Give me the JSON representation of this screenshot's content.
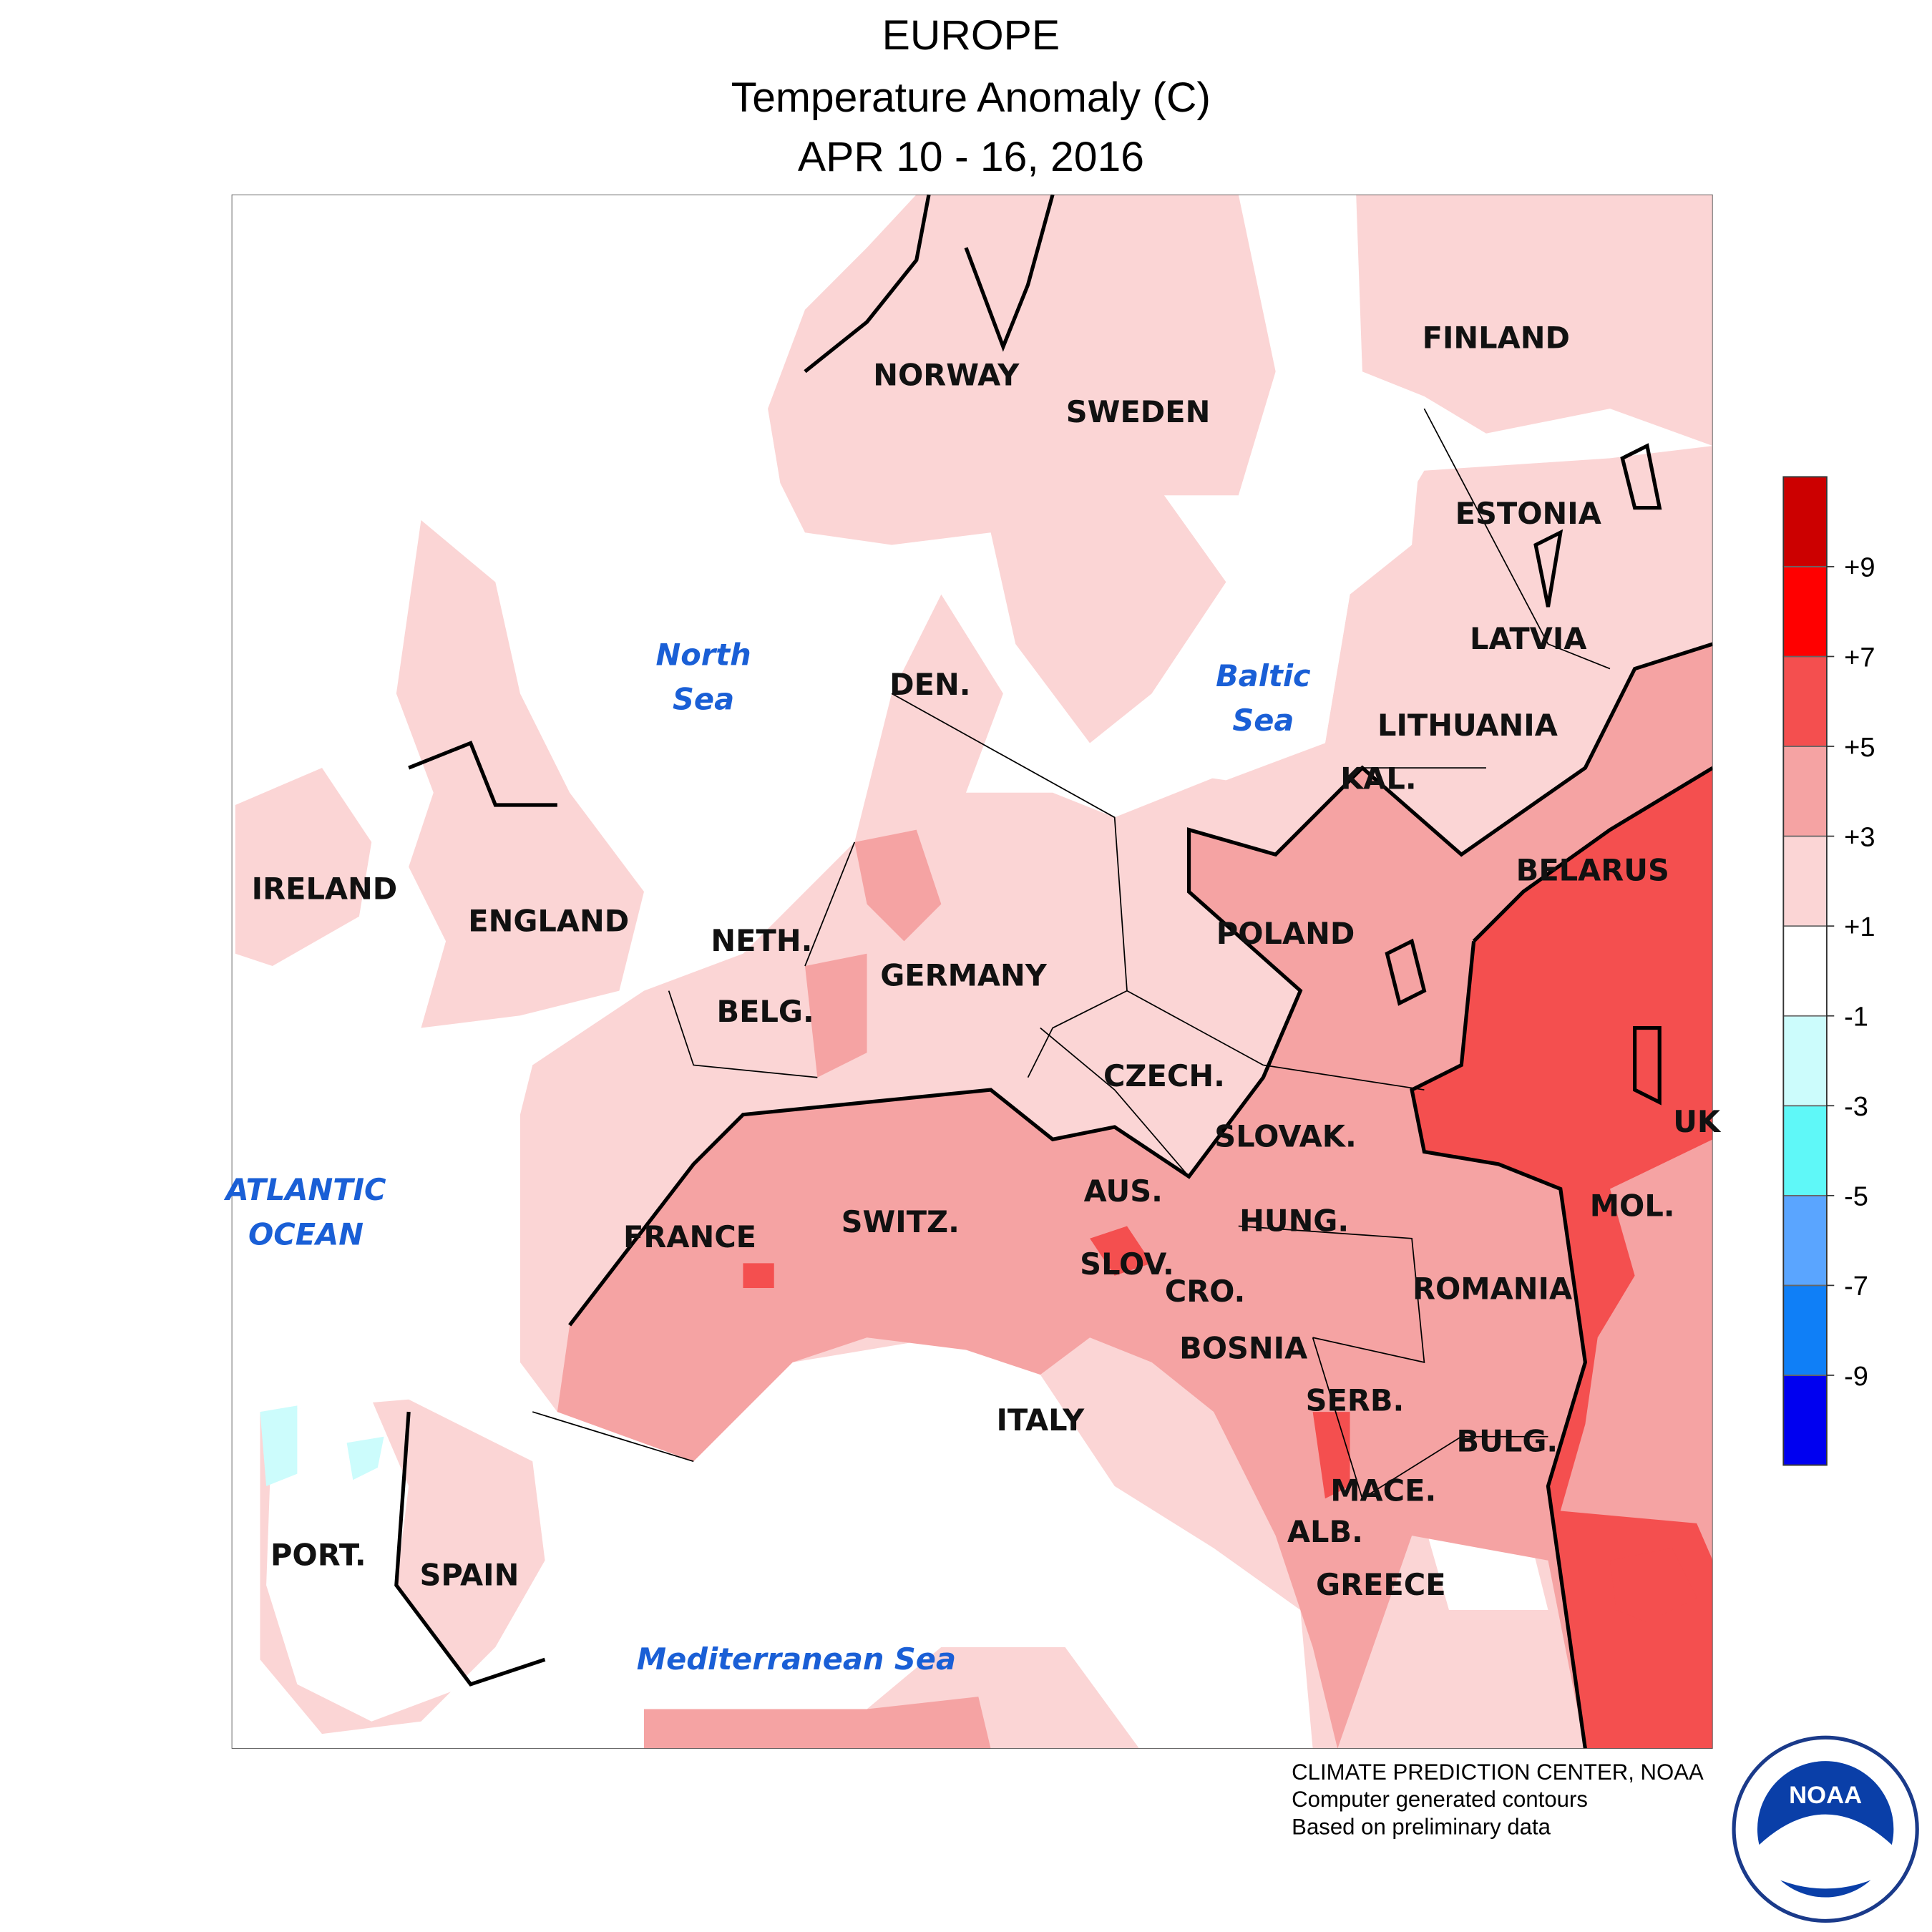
{
  "header": {
    "title": "EUROPE",
    "subtitle": "Temperature Anomaly (C)",
    "period": "APR 10 - 16, 2016"
  },
  "labels": {
    "countries": [
      "NORWAY",
      "SWEDEN",
      "FINLAND",
      "ESTONIA",
      "LATVIA",
      "LITHUANIA",
      "KAL.",
      "DEN.",
      "BELARUS",
      "POLAND",
      "IRELAND",
      "ENGLAND",
      "NETH.",
      "BELG.",
      "GERMANY",
      "CZECH.",
      "SLOVAK.",
      "UK",
      "MOL.",
      "AUS.",
      "HUNG.",
      "FRANCE",
      "SWITZ.",
      "SLOV.",
      "CRO.",
      "ROMANIA",
      "BOSNIA",
      "SERB.",
      "BULG.",
      "ITALY",
      "MACE.",
      "ALB.",
      "GREECE",
      "PORT.",
      "SPAIN"
    ],
    "seas": [
      "North",
      "Sea",
      "Baltic",
      "Sea",
      "ATLANTIC",
      "OCEAN",
      "Mediterranean Sea"
    ]
  },
  "colorbar": {
    "lim": [
      -11,
      11
    ],
    "colors": [
      "#0000f0",
      "#0f7ff7",
      "#5aa5ff",
      "#5ff8f8",
      "#ccfcfc",
      "#ffffff",
      "#fbd5d5",
      "#f5a3a3",
      "#f44f4f",
      "#ff0000",
      "#cc0000"
    ],
    "ticks": [
      {
        "value": -9,
        "label": "-9"
      },
      {
        "value": -7,
        "label": "-7"
      },
      {
        "value": -5,
        "label": "-5"
      },
      {
        "value": -3,
        "label": "-3"
      },
      {
        "value": -1,
        "label": "-1"
      },
      {
        "value": 1,
        "label": "+1"
      },
      {
        "value": 3,
        "label": "+3"
      },
      {
        "value": 5,
        "label": "+5"
      },
      {
        "value": 7,
        "label": "+7"
      },
      {
        "value": 9,
        "label": "+9"
      }
    ]
  },
  "footer": {
    "lines": [
      "CLIMATE PREDICTION CENTER, NOAA",
      "Computer generated contours",
      "Based on preliminary data"
    ],
    "logo": "NOAA"
  }
}
